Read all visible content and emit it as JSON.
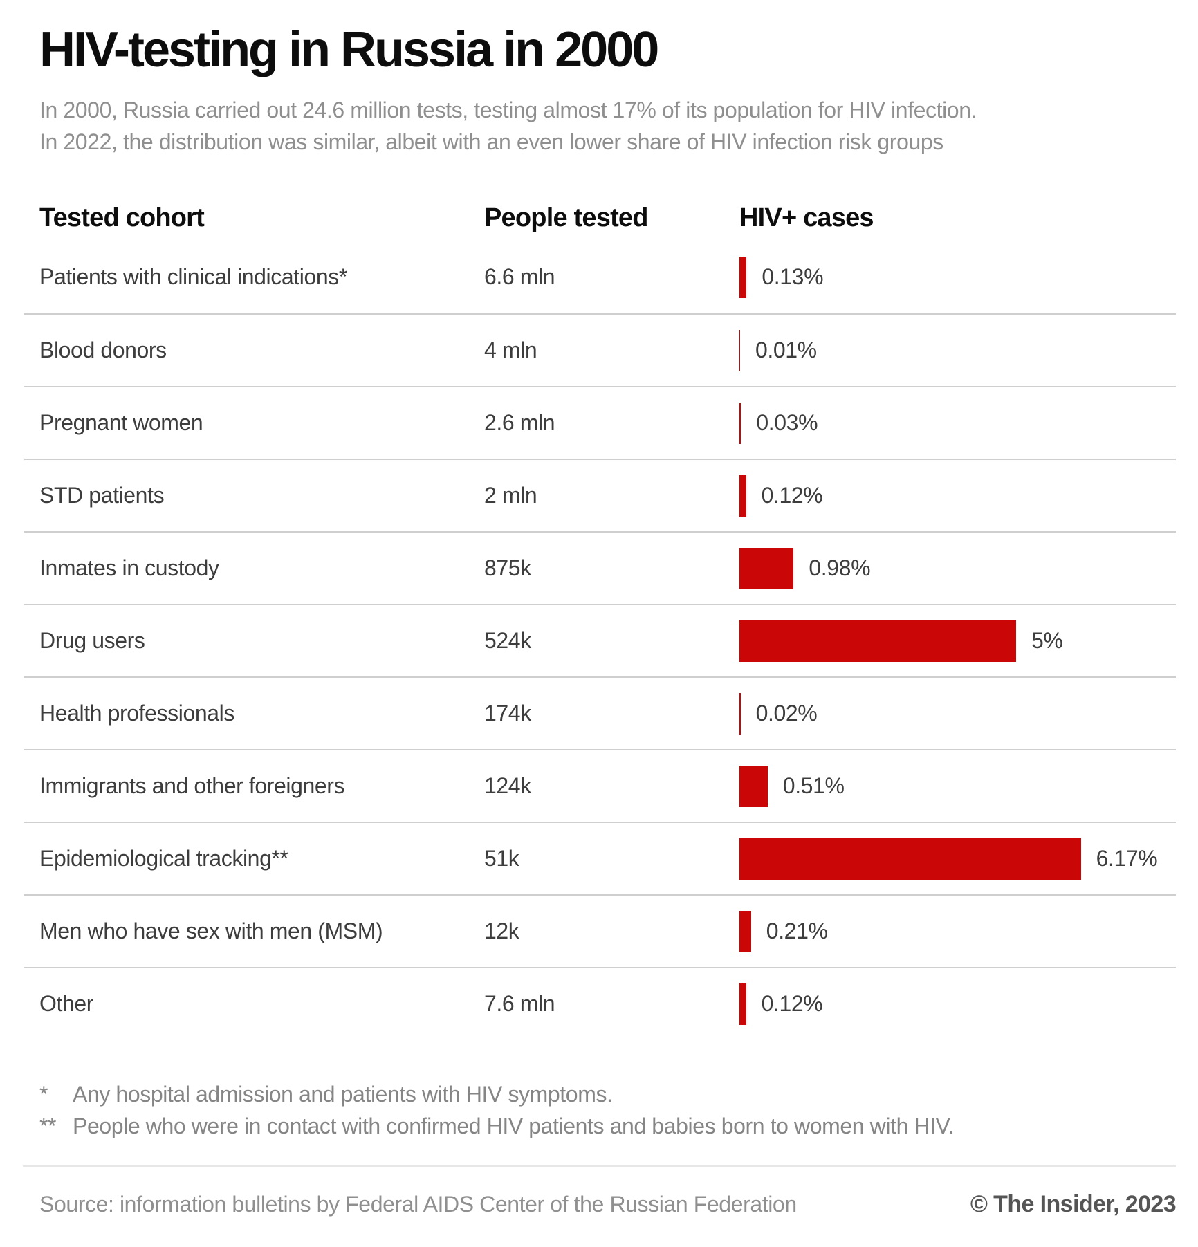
{
  "title": "HIV-testing in Russia in 2000",
  "subtitle_line1": "In 2000, Russia carried out 24.6 million tests, testing almost 17% of its population for HIV infection.",
  "subtitle_line2": "In 2022, the distribution was similar, albeit with an even lower share of HIV infection risk groups",
  "columns": {
    "cohort": "Tested cohort",
    "tested": "People tested",
    "cases": "HIV+ cases"
  },
  "chart_data": {
    "type": "bar",
    "orientation": "horizontal",
    "title": "HIV-testing in Russia in 2000",
    "categories": [
      "Patients with clinical indications*",
      "Blood donors",
      "Pregnant women",
      "STD patients",
      "Inmates in custody",
      "Drug users",
      "Health professionals",
      "Immigrants and other foreigners",
      "Epidemiological tracking**",
      "Men who have sex with men (MSM)",
      "Other"
    ],
    "series": [
      {
        "name": "People tested",
        "values_text": [
          "6.6 mln",
          "4 mln",
          "2.6 mln",
          "2 mln",
          "875k",
          "524k",
          "174k",
          "124k",
          "51k",
          "12k",
          "7.6 mln"
        ]
      },
      {
        "name": "HIV+ cases",
        "unit": "%",
        "values": [
          0.13,
          0.01,
          0.03,
          0.12,
          0.98,
          5,
          0.02,
          0.51,
          6.17,
          0.21,
          0.12
        ],
        "labels": [
          "0.13%",
          "0.01%",
          "0.03%",
          "0.12%",
          "0.98%",
          "5%",
          "0.02%",
          "0.51%",
          "6.17%",
          "0.21%",
          "0.12%"
        ]
      }
    ],
    "xlim": [
      0,
      6.5
    ],
    "grid": false,
    "legend": "none",
    "bar_color": "#cb0606"
  },
  "footnotes": [
    {
      "marker": "*",
      "text": "Any hospital admission and patients with HIV symptoms."
    },
    {
      "marker": "**",
      "text": "People who were in contact with confirmed HIV patients and babies born to women with HIV."
    }
  ],
  "source": "Source: information bulletins by Federal AIDS Center of the Russian Federation",
  "credit": "© The Insider, 2023",
  "colors": {
    "accent_red": "#cb0606",
    "title_text": "#0d0d0d",
    "body_text": "#3d3d3d",
    "muted_text": "#8f8f8f",
    "separator": "#cfcfcf",
    "divider": "#e7e7e7"
  }
}
